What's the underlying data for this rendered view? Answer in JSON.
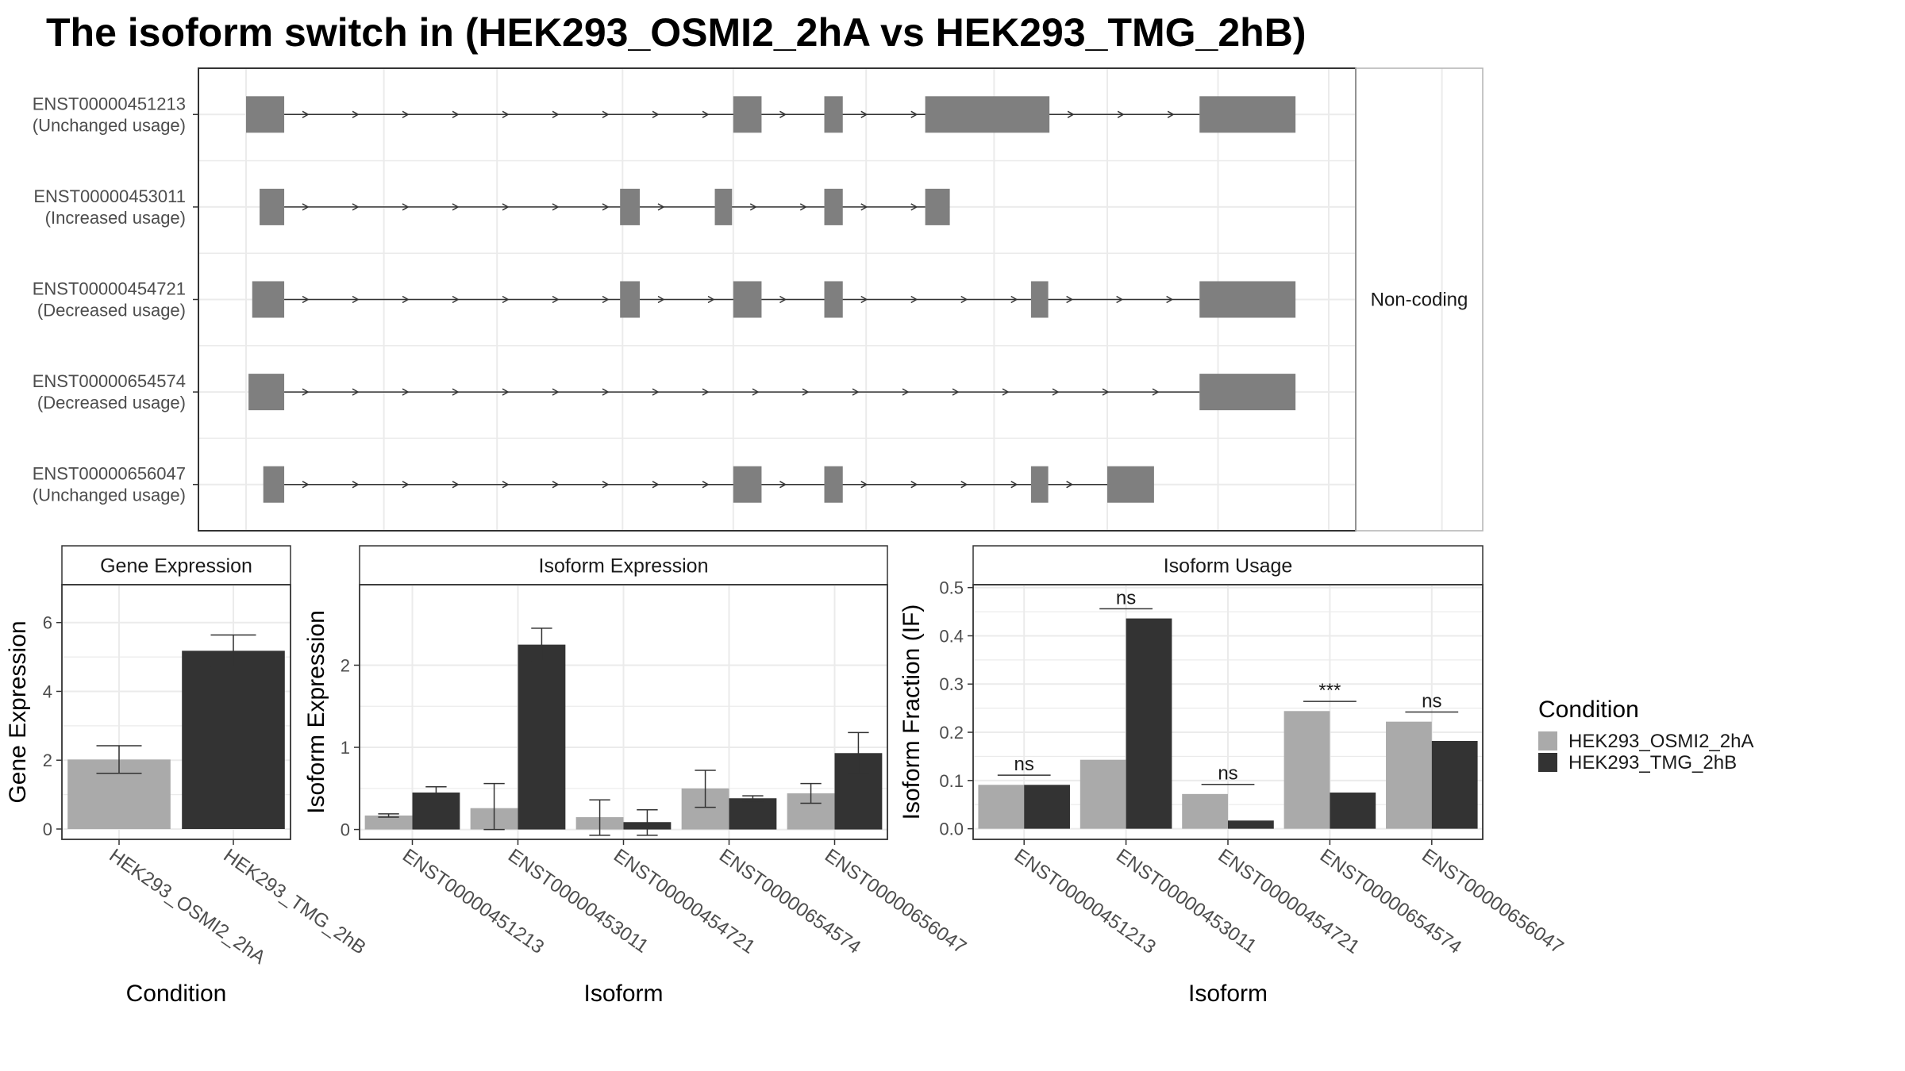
{
  "title": "The isoform switch in  (HEK293_OSMI2_2hA vs HEK293_TMG_2hB)",
  "colors": {
    "condition_a": "#aaaaaa",
    "condition_b": "#333333",
    "exon": "#7f7f7f",
    "grid": "#ebebeb"
  },
  "structure": {
    "strip_label": "Non-coding",
    "transcripts": [
      {
        "id": "ENST00000451213",
        "status": "(Unchanged usage)",
        "exons": [
          [
            200,
            231
          ],
          [
            596,
            619
          ],
          [
            670,
            685
          ],
          [
            752,
            853
          ],
          [
            975,
            1053
          ]
        ]
      },
      {
        "id": "ENST00000453011",
        "status": "(Increased usage)",
        "exons": [
          [
            211,
            231
          ],
          [
            504,
            520
          ],
          [
            581,
            595
          ],
          [
            670,
            685
          ],
          [
            752,
            772
          ]
        ]
      },
      {
        "id": "ENST00000454721",
        "status": "(Decreased usage)",
        "exons": [
          [
            205,
            231
          ],
          [
            504,
            520
          ],
          [
            596,
            619
          ],
          [
            670,
            685
          ],
          [
            838,
            852
          ],
          [
            975,
            1053
          ]
        ]
      },
      {
        "id": "ENST00000654574",
        "status": "(Decreased usage)",
        "exons": [
          [
            202,
            231
          ],
          [
            975,
            1053
          ]
        ]
      },
      {
        "id": "ENST00000656047",
        "status": "(Unchanged usage)",
        "exons": [
          [
            214,
            231
          ],
          [
            596,
            619
          ],
          [
            670,
            685
          ],
          [
            838,
            852
          ],
          [
            900,
            938
          ]
        ]
      }
    ]
  },
  "legend": {
    "title": "Condition",
    "items": [
      "HEK293_OSMI2_2hA",
      "HEK293_TMG_2hB"
    ]
  },
  "chart_data": [
    {
      "type": "bar",
      "title": "Gene Expression",
      "xlabel": "Condition",
      "ylabel": "Gene Expression",
      "categories": [
        "HEK293_OSMI2_2hA",
        "HEK293_TMG_2hB"
      ],
      "values": [
        2.02,
        5.18
      ],
      "error": [
        [
          1.62,
          2.42
        ],
        [
          4.72,
          5.64
        ]
      ],
      "ylim": [
        -0.3,
        7.1
      ],
      "yticks": [
        0,
        2,
        4,
        6
      ]
    },
    {
      "type": "bar",
      "title": "Isoform Expression",
      "xlabel": "Isoform",
      "ylabel": "Isoform Expression",
      "categories": [
        "ENST00000451213",
        "ENST00000453011",
        "ENST00000454721",
        "ENST00000654574",
        "ENST00000656047"
      ],
      "series": [
        {
          "name": "HEK293_OSMI2_2hA",
          "values": [
            0.17,
            0.26,
            0.15,
            0.5,
            0.44
          ],
          "error": [
            [
              0.15,
              0.19
            ],
            [
              0.0,
              0.56
            ],
            [
              -0.07,
              0.36
            ],
            [
              0.27,
              0.72
            ],
            [
              0.32,
              0.56
            ]
          ]
        },
        {
          "name": "HEK293_TMG_2hB",
          "values": [
            0.45,
            2.25,
            0.09,
            0.38,
            0.93
          ],
          "error": [
            [
              0.39,
              0.52
            ],
            [
              2.05,
              2.45
            ],
            [
              -0.07,
              0.24
            ],
            [
              0.35,
              0.41
            ],
            [
              0.68,
              1.18
            ]
          ]
        }
      ],
      "ylim": [
        -0.12,
        2.98
      ],
      "yticks": [
        0,
        1,
        2
      ]
    },
    {
      "type": "bar",
      "title": "Isoform Usage",
      "xlabel": "Isoform",
      "ylabel": "Isoform Fraction (IF)",
      "categories": [
        "ENST00000451213",
        "ENST00000453011",
        "ENST00000454721",
        "ENST00000654574",
        "ENST00000656047"
      ],
      "series": [
        {
          "name": "HEK293_OSMI2_2hA",
          "values": [
            0.091,
            0.143,
            0.072,
            0.244,
            0.222
          ]
        },
        {
          "name": "HEK293_TMG_2hB",
          "values": [
            0.091,
            0.436,
            0.017,
            0.075,
            0.182
          ]
        }
      ],
      "annotations": [
        "ns",
        "ns",
        "ns",
        "***",
        "ns"
      ],
      "annotation_y": [
        0.111,
        0.456,
        0.092,
        0.264,
        0.242
      ],
      "ylim": [
        -0.022,
        0.506
      ],
      "yticks": [
        0.0,
        0.1,
        0.2,
        0.3,
        0.4,
        0.5
      ],
      "ytick_labels": [
        "0.0",
        "0.1",
        "0.2",
        "0.3",
        "0.4",
        "0.5"
      ]
    }
  ]
}
